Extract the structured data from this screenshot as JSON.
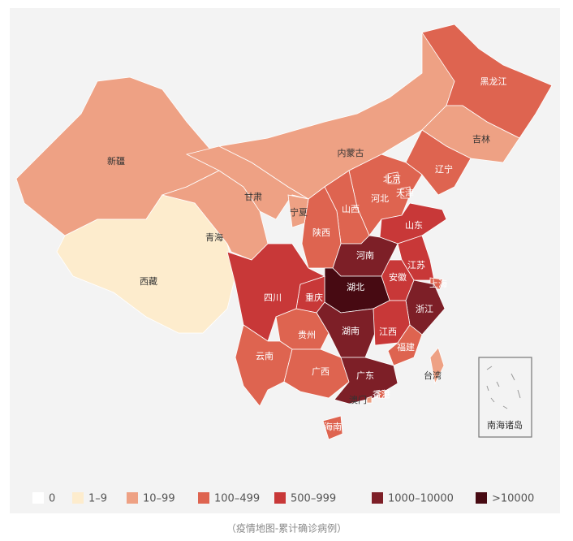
{
  "map": {
    "regions": [
      {
        "label": "新疆",
        "level": 2
      },
      {
        "label": "西藏",
        "level": 1
      },
      {
        "label": "青海",
        "level": 2
      },
      {
        "label": "甘肃",
        "level": 2
      },
      {
        "label": "内蒙古",
        "level": 2
      },
      {
        "label": "黑龙江",
        "level": 3
      },
      {
        "label": "吉林",
        "level": 2
      },
      {
        "label": "辽宁",
        "level": 3
      },
      {
        "label": "河北",
        "level": 3
      },
      {
        "label": "山西",
        "level": 3
      },
      {
        "label": "陕西",
        "level": 3
      },
      {
        "label": "宁夏",
        "level": 2
      },
      {
        "label": "山东",
        "level": 4
      },
      {
        "label": "河南",
        "level": 5
      },
      {
        "label": "江苏",
        "level": 4
      },
      {
        "label": "安徽",
        "level": 4
      },
      {
        "label": "上海",
        "level": 3
      },
      {
        "label": "浙江",
        "level": 5
      },
      {
        "label": "湖北",
        "level": 6
      },
      {
        "label": "重庆",
        "level": 4
      },
      {
        "label": "四川",
        "level": 4
      },
      {
        "label": "湖南",
        "level": 5
      },
      {
        "label": "江西",
        "level": 4
      },
      {
        "label": "福建",
        "level": 3
      },
      {
        "label": "贵州",
        "level": 3
      },
      {
        "label": "云南",
        "level": 3
      },
      {
        "label": "广西",
        "level": 3
      },
      {
        "label": "广东",
        "level": 5
      },
      {
        "label": "海南",
        "level": 3
      },
      {
        "label": "台湾",
        "level": 2
      },
      {
        "label": "北京",
        "level": 3
      },
      {
        "label": "天津",
        "level": 3
      },
      {
        "label": "香港",
        "level": 3
      },
      {
        "label": "澳门",
        "level": 2
      }
    ],
    "legend": [
      {
        "label": "0",
        "color": "#ffffff"
      },
      {
        "label": "1–9",
        "color": "#fdeccd"
      },
      {
        "label": "10–99",
        "color": "#eea184"
      },
      {
        "label": "100–499",
        "color": "#de6450"
      },
      {
        "label": "500–999",
        "color": "#c83838"
      },
      {
        "label": "1000–10000",
        "color": "#7d1f27"
      },
      {
        "label": ">10000",
        "color": "#470a12"
      }
    ],
    "inset_label": "南海诸岛"
  },
  "caption": "（疫情地图-累计确诊病例）"
}
